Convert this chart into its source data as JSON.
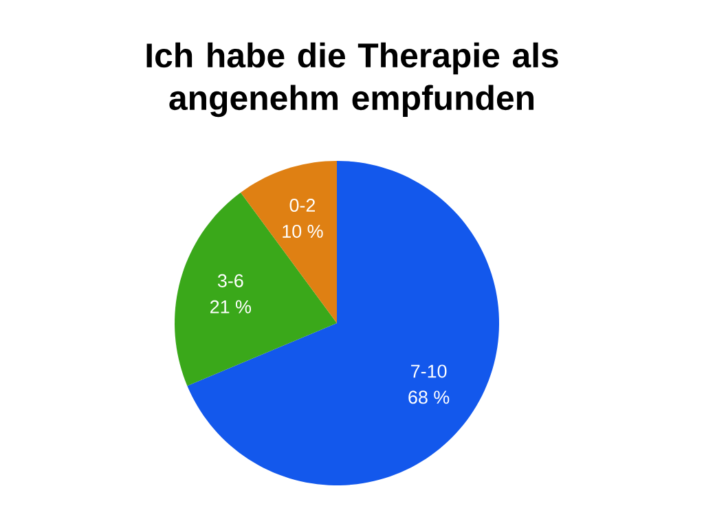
{
  "chart_data": {
    "type": "pie",
    "title": "Ich habe die Therapie als angenehm empfunden",
    "categories": [
      "7-10",
      "3-6",
      "0-2"
    ],
    "values": [
      68,
      21,
      10
    ],
    "value_labels": [
      "68 %",
      "21 %",
      "10 %"
    ],
    "colors": [
      "#1358ec",
      "#3aa81a",
      "#df8013"
    ]
  }
}
